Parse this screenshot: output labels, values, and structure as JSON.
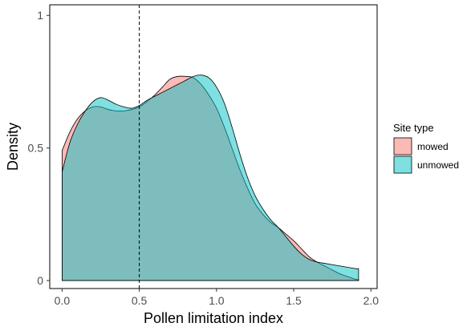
{
  "chart_data": {
    "type": "area",
    "xlabel": "Pollen limitation index",
    "ylabel": "Density",
    "xlim": [
      -0.08,
      2.04
    ],
    "ylim": [
      -0.03,
      1.04
    ],
    "x_ticks": [
      0,
      0.5,
      1,
      1.5,
      2
    ],
    "x_tick_labels": [
      "0.0",
      "0.5",
      "1.0",
      "1.5",
      "2.0"
    ],
    "y_ticks": [
      0,
      0.5,
      1
    ],
    "y_tick_labels": [
      "0",
      "0.5",
      "1"
    ],
    "grid": false,
    "reference_line": {
      "x": 0.5,
      "style": "dashed"
    },
    "legend": {
      "title": "Site type",
      "placement": "right"
    },
    "series": [
      {
        "name": "mowed",
        "color": "#F8766D",
        "x": [
          0,
          0.05,
          0.1,
          0.15,
          0.2,
          0.25,
          0.3,
          0.35,
          0.4,
          0.45,
          0.5,
          0.55,
          0.6,
          0.65,
          0.7,
          0.75,
          0.8,
          0.85,
          0.9,
          0.95,
          1.0,
          1.05,
          1.1,
          1.15,
          1.2,
          1.25,
          1.3,
          1.35,
          1.4,
          1.45,
          1.5,
          1.55,
          1.6,
          1.65,
          1.7,
          1.75,
          1.8,
          1.85,
          1.9,
          1.92
        ],
        "y": [
          0.49,
          0.56,
          0.61,
          0.64,
          0.655,
          0.655,
          0.645,
          0.64,
          0.64,
          0.645,
          0.655,
          0.675,
          0.7,
          0.73,
          0.76,
          0.77,
          0.77,
          0.765,
          0.74,
          0.7,
          0.65,
          0.58,
          0.5,
          0.42,
          0.35,
          0.29,
          0.25,
          0.22,
          0.2,
          0.175,
          0.15,
          0.12,
          0.09,
          0.07,
          0.055,
          0.04,
          0.025,
          0.015,
          0.005,
          0.003
        ]
      },
      {
        "name": "unmowed",
        "color": "#00BFC4",
        "x": [
          0,
          0.05,
          0.1,
          0.15,
          0.2,
          0.25,
          0.3,
          0.35,
          0.4,
          0.45,
          0.5,
          0.55,
          0.6,
          0.65,
          0.7,
          0.75,
          0.8,
          0.85,
          0.9,
          0.95,
          1.0,
          1.05,
          1.1,
          1.15,
          1.2,
          1.25,
          1.3,
          1.35,
          1.4,
          1.45,
          1.5,
          1.55,
          1.6,
          1.65,
          1.7,
          1.75,
          1.8,
          1.85,
          1.9,
          1.92
        ],
        "y": [
          0.41,
          0.52,
          0.59,
          0.64,
          0.675,
          0.69,
          0.68,
          0.665,
          0.655,
          0.65,
          0.66,
          0.68,
          0.695,
          0.71,
          0.725,
          0.74,
          0.755,
          0.77,
          0.775,
          0.765,
          0.73,
          0.67,
          0.58,
          0.48,
          0.39,
          0.32,
          0.27,
          0.23,
          0.2,
          0.165,
          0.13,
          0.1,
          0.08,
          0.07,
          0.065,
          0.06,
          0.055,
          0.05,
          0.045,
          0.045
        ]
      }
    ]
  }
}
